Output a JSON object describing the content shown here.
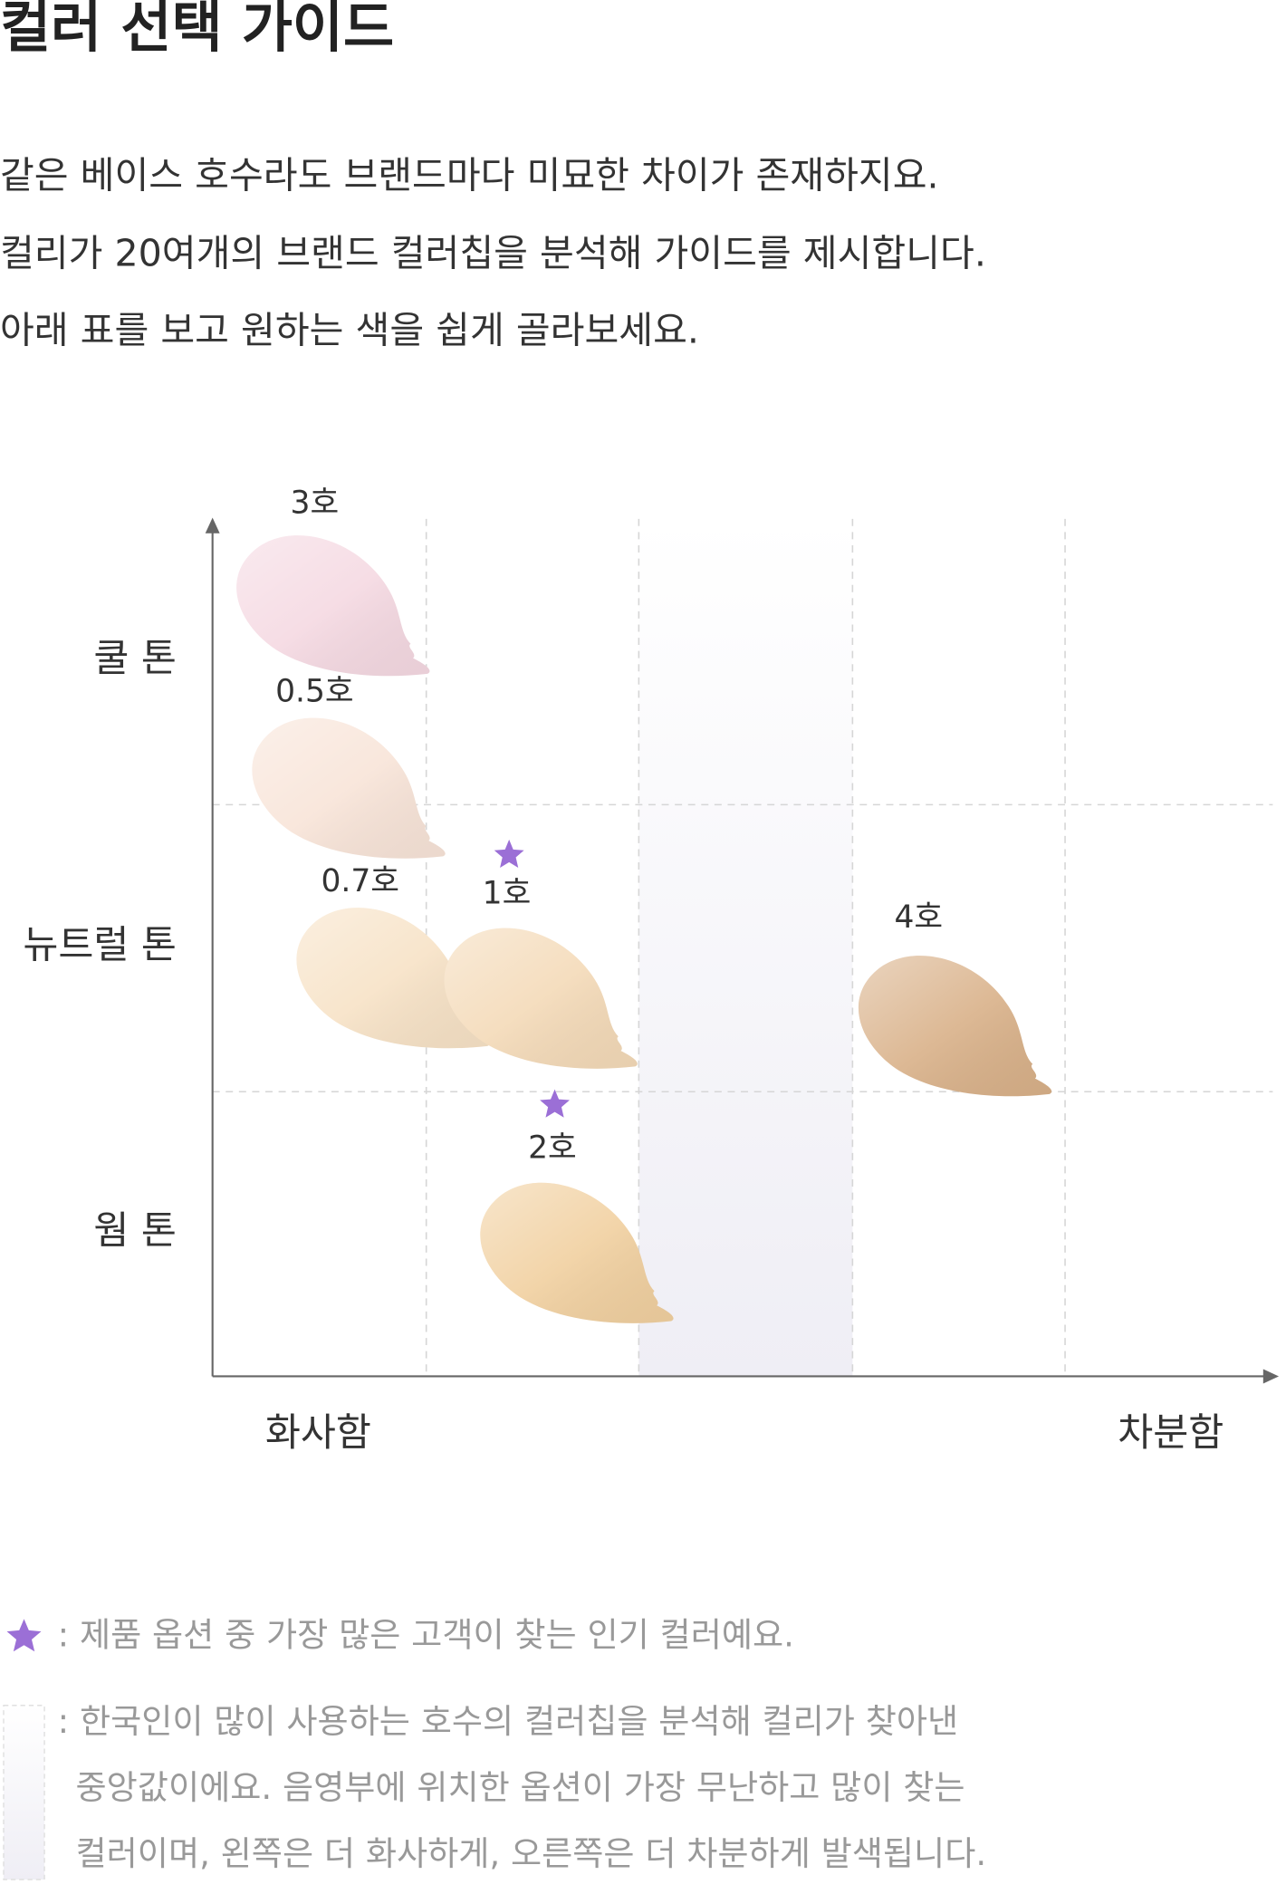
{
  "title": "컬러 선택 가이드",
  "description": [
    "같은 베이스 호수라도 브랜드마다 미묘한 차이가 존재하지요.",
    "컬리가 20여개의 브랜드 컬러칩을 분석해 가이드를 제시합니다.",
    "아래 표를 보고 원하는 색을 쉽게 골라보세요."
  ],
  "y_labels": [
    "쿨 톤",
    "뉴트럴 톤",
    "웜 톤"
  ],
  "x_labels": [
    "화사함",
    "차분함"
  ],
  "swatches": [
    {
      "label": "3호",
      "color": "#f5d9e2",
      "popular": false
    },
    {
      "label": "0.5호",
      "color": "#f8e4d8",
      "popular": false
    },
    {
      "label": "0.7호",
      "color": "#f7e2c6",
      "popular": false
    },
    {
      "label": "1호",
      "color": "#f4dab8",
      "popular": true
    },
    {
      "label": "4호",
      "color": "#d9b189",
      "popular": false
    },
    {
      "label": "2호",
      "color": "#f1d0a0",
      "popular": true
    }
  ],
  "legend": {
    "popular": ": 제품 옵션 중 가장 많은 고객이 찾는 인기 컬러예요.",
    "median": [
      ": 한국인이 많이 사용하는 호수의 컬러칩을 분석해 컬리가 찾아낸",
      "중앙값이에요. 음영부에 위치한 옵션이 가장 무난하고 많이 찾는",
      "컬러이며, 왼쪽은 더 화사하게, 오른쪽은 더 차분하게 발색됩니다."
    ]
  }
}
